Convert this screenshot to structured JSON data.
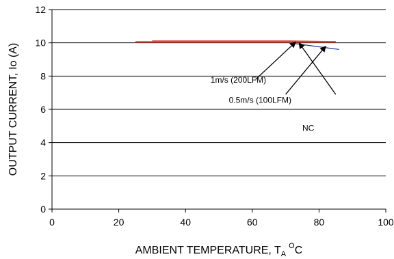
{
  "chart_data": {
    "type": "line",
    "title": "",
    "xlabel": {
      "main": "AMBIENT TEMPERATURE, T",
      "sub": "A",
      "sup": "O",
      "unit": "C"
    },
    "ylabel": "OUTPUT CURRENT, Io  (A)",
    "xlim": [
      0,
      100
    ],
    "ylim": [
      0,
      12
    ],
    "xticks": [
      0,
      20,
      40,
      60,
      80,
      100
    ],
    "yticks": [
      0,
      2,
      4,
      6,
      8,
      10,
      12
    ],
    "grid": "horizontal",
    "legend": "none",
    "series": [
      {
        "color": "#e04a3a",
        "x": [
          25,
          85
        ],
        "y": [
          10.05,
          10.05
        ]
      },
      {
        "color": "#e04a3a",
        "x": [
          30,
          71,
          85
        ],
        "y": [
          10.1,
          10.1,
          10.05
        ]
      },
      {
        "color": "#2a3f8f",
        "x": [
          71,
          86
        ],
        "y": [
          10.0,
          9.6
        ]
      }
    ],
    "annotations": [
      {
        "text": "1m/s (200LFM)",
        "text_x": 47.5,
        "text_y": 7.6,
        "arrow_from": [
          61,
          7.8
        ],
        "arrow_to": [
          73,
          10.05
        ]
      },
      {
        "text": "0.5m/s (100LFM)",
        "text_x": 53,
        "text_y": 6.4,
        "arrow_from": [
          70,
          6.9
        ],
        "arrow_to": [
          82,
          9.8
        ]
      },
      {
        "text": "NC",
        "text_x": 75,
        "text_y": 4.7,
        "arrow_from": [
          85,
          6.9
        ],
        "arrow_to": [
          74,
          10.0
        ]
      }
    ]
  }
}
